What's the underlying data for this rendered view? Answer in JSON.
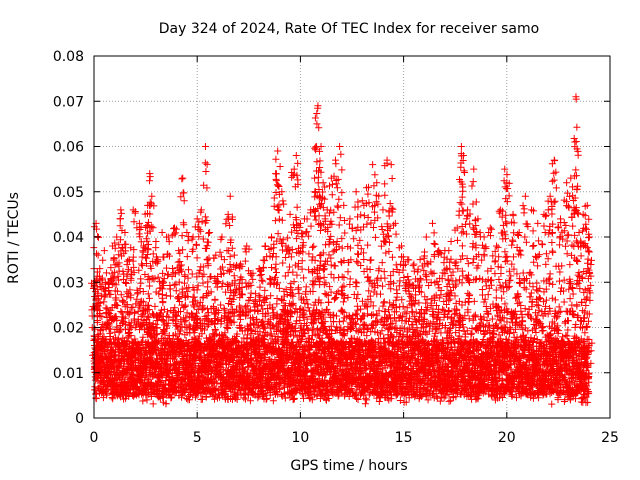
{
  "chart_data": {
    "type": "scatter",
    "title": "Day 324 of 2024, Rate Of TEC Index for receiver samo",
    "xlabel": "GPS time / hours",
    "ylabel": "ROTI / TECUs",
    "xlim": [
      0,
      25
    ],
    "ylim": [
      0,
      0.08
    ],
    "x_ticks": [
      0,
      5,
      10,
      15,
      20,
      25
    ],
    "x_tick_labels": [
      "0",
      "5",
      "10",
      "15",
      "20",
      "25"
    ],
    "y_ticks": [
      0,
      0.01,
      0.02,
      0.03,
      0.04,
      0.05,
      0.06,
      0.07,
      0.08
    ],
    "y_tick_labels": [
      "0",
      "0.01",
      "0.02",
      "0.03",
      "0.04",
      "0.05",
      "0.06",
      "0.07",
      "0.08"
    ],
    "grid": true,
    "marker": "+",
    "marker_color": "#ff0000",
    "data_range_x": [
      0,
      24
    ],
    "series": [
      {
        "points": [
          [
            0.0,
            0.033
          ],
          [
            0.1,
            0.043
          ],
          [
            0.2,
            0.036
          ],
          [
            0.3,
            0.029
          ],
          [
            0.5,
            0.037
          ],
          [
            0.7,
            0.03
          ],
          [
            0.9,
            0.038
          ],
          [
            1.1,
            0.04
          ],
          [
            1.3,
            0.046
          ],
          [
            1.5,
            0.041
          ],
          [
            1.7,
            0.035
          ],
          [
            1.9,
            0.046
          ],
          [
            2.2,
            0.043
          ],
          [
            2.4,
            0.038
          ],
          [
            2.6,
            0.047
          ],
          [
            2.7,
            0.054
          ],
          [
            2.8,
            0.049
          ],
          [
            3.0,
            0.039
          ],
          [
            3.3,
            0.041
          ],
          [
            3.6,
            0.04
          ],
          [
            3.9,
            0.042
          ],
          [
            4.1,
            0.037
          ],
          [
            4.3,
            0.053
          ],
          [
            4.5,
            0.041
          ],
          [
            4.8,
            0.04
          ],
          [
            5.0,
            0.044
          ],
          [
            5.2,
            0.046
          ],
          [
            5.4,
            0.06
          ],
          [
            5.6,
            0.041
          ],
          [
            5.9,
            0.036
          ],
          [
            6.2,
            0.04
          ],
          [
            6.5,
            0.045
          ],
          [
            6.6,
            0.049
          ],
          [
            6.8,
            0.036
          ],
          [
            7.1,
            0.034
          ],
          [
            7.4,
            0.038
          ],
          [
            7.7,
            0.032
          ],
          [
            8.0,
            0.033
          ],
          [
            8.3,
            0.038
          ],
          [
            8.6,
            0.04
          ],
          [
            8.8,
            0.054
          ],
          [
            8.9,
            0.059
          ],
          [
            9.1,
            0.05
          ],
          [
            9.3,
            0.038
          ],
          [
            9.5,
            0.045
          ],
          [
            9.7,
            0.055
          ],
          [
            9.8,
            0.058
          ],
          [
            10.0,
            0.043
          ],
          [
            10.2,
            0.044
          ],
          [
            10.5,
            0.046
          ],
          [
            10.7,
            0.05
          ],
          [
            10.8,
            0.065
          ],
          [
            10.85,
            0.069
          ],
          [
            11.0,
            0.06
          ],
          [
            11.1,
            0.052
          ],
          [
            11.3,
            0.046
          ],
          [
            11.5,
            0.053
          ],
          [
            11.7,
            0.057
          ],
          [
            11.9,
            0.06
          ],
          [
            12.1,
            0.047
          ],
          [
            12.4,
            0.044
          ],
          [
            12.7,
            0.05
          ],
          [
            13.0,
            0.048
          ],
          [
            13.3,
            0.051
          ],
          [
            13.5,
            0.056
          ],
          [
            13.7,
            0.052
          ],
          [
            14.0,
            0.046
          ],
          [
            14.2,
            0.057
          ],
          [
            14.4,
            0.056
          ],
          [
            14.6,
            0.043
          ],
          [
            14.9,
            0.038
          ],
          [
            15.2,
            0.035
          ],
          [
            15.5,
            0.034
          ],
          [
            15.8,
            0.035
          ],
          [
            16.1,
            0.04
          ],
          [
            16.4,
            0.043
          ],
          [
            16.7,
            0.037
          ],
          [
            17.0,
            0.037
          ],
          [
            17.3,
            0.039
          ],
          [
            17.6,
            0.042
          ],
          [
            17.8,
            0.06
          ],
          [
            17.9,
            0.058
          ],
          [
            18.1,
            0.046
          ],
          [
            18.4,
            0.055
          ],
          [
            18.6,
            0.044
          ],
          [
            18.9,
            0.04
          ],
          [
            19.2,
            0.042
          ],
          [
            19.5,
            0.038
          ],
          [
            19.7,
            0.046
          ],
          [
            19.9,
            0.055
          ],
          [
            20.0,
            0.052
          ],
          [
            20.3,
            0.045
          ],
          [
            20.6,
            0.041
          ],
          [
            20.9,
            0.049
          ],
          [
            21.2,
            0.046
          ],
          [
            21.5,
            0.043
          ],
          [
            21.8,
            0.045
          ],
          [
            22.1,
            0.049
          ],
          [
            22.3,
            0.057
          ],
          [
            22.6,
            0.044
          ],
          [
            22.9,
            0.052
          ],
          [
            23.1,
            0.053
          ],
          [
            23.3,
            0.061
          ],
          [
            23.35,
            0.071
          ],
          [
            23.5,
            0.041
          ],
          [
            23.7,
            0.045
          ],
          [
            23.9,
            0.047
          ],
          [
            24.0,
            0.04
          ]
        ]
      }
    ]
  }
}
